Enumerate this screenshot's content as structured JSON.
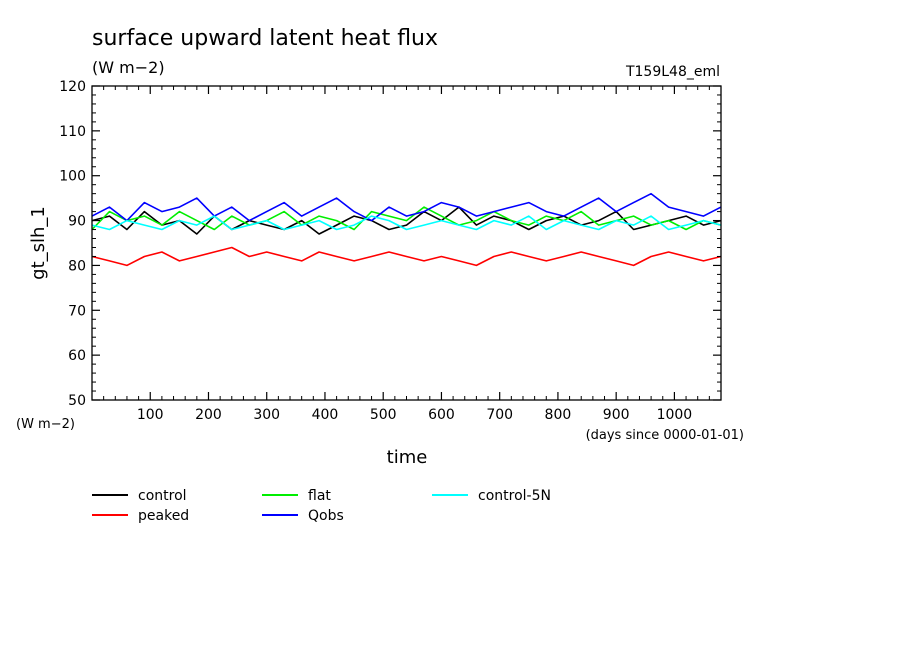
{
  "chart_data": {
    "type": "line",
    "title": "surface upward latent heat flux",
    "subtitle": "(W m−2)",
    "run_label": "T159L48_eml",
    "xlabel": "time",
    "x_units": "(days since 0000-01-01)",
    "ylabel": "gt_slh_1",
    "y_units": "(W m−2)",
    "xlim": [
      0,
      1080
    ],
    "ylim": [
      50,
      120
    ],
    "xticks": [
      "100",
      "200",
      "300",
      "400",
      "500",
      "600",
      "700",
      "800",
      "900",
      "1000"
    ],
    "yticks": [
      "50",
      "60",
      "70",
      "80",
      "90",
      "100",
      "110",
      "120"
    ],
    "legend_position": "bottom",
    "grid": false,
    "series": [
      {
        "name": "control",
        "color": "#000000",
        "x": [
          0,
          30,
          60,
          90,
          120,
          150,
          180,
          210,
          240,
          270,
          300,
          330,
          360,
          390,
          420,
          450,
          480,
          510,
          540,
          570,
          600,
          630,
          660,
          690,
          720,
          750,
          780,
          810,
          840,
          870,
          900,
          930,
          960,
          990,
          1020,
          1050,
          1080
        ],
        "y": [
          90,
          91,
          88,
          92,
          89,
          90,
          87,
          91,
          88,
          90,
          89,
          88,
          90,
          87,
          89,
          91,
          90,
          88,
          89,
          92,
          90,
          93,
          89,
          91,
          90,
          88,
          90,
          91,
          89,
          90,
          92,
          88,
          89,
          90,
          91,
          89,
          90
        ]
      },
      {
        "name": "peaked",
        "color": "#ff0000",
        "x": [
          0,
          30,
          60,
          90,
          120,
          150,
          180,
          210,
          240,
          270,
          300,
          330,
          360,
          390,
          420,
          450,
          480,
          510,
          540,
          570,
          600,
          630,
          660,
          690,
          720,
          750,
          780,
          810,
          840,
          870,
          900,
          930,
          960,
          990,
          1020,
          1050,
          1080
        ],
        "y": [
          82,
          81,
          80,
          82,
          83,
          81,
          82,
          83,
          84,
          82,
          83,
          82,
          81,
          83,
          82,
          81,
          82,
          83,
          82,
          81,
          82,
          81,
          80,
          82,
          83,
          82,
          81,
          82,
          83,
          82,
          81,
          80,
          82,
          83,
          82,
          81,
          82
        ]
      },
      {
        "name": "flat",
        "color": "#00ee00",
        "x": [
          0,
          30,
          60,
          90,
          120,
          150,
          180,
          210,
          240,
          270,
          300,
          330,
          360,
          390,
          420,
          450,
          480,
          510,
          540,
          570,
          600,
          630,
          660,
          690,
          720,
          750,
          780,
          810,
          840,
          870,
          900,
          930,
          960,
          990,
          1020,
          1050,
          1080
        ],
        "y": [
          88,
          92,
          90,
          91,
          89,
          92,
          90,
          88,
          91,
          89,
          90,
          92,
          89,
          91,
          90,
          88,
          92,
          91,
          90,
          93,
          91,
          89,
          90,
          92,
          90,
          89,
          91,
          90,
          92,
          89,
          90,
          91,
          89,
          90,
          88,
          90,
          89
        ]
      },
      {
        "name": "Qobs",
        "color": "#0000ff",
        "x": [
          0,
          30,
          60,
          90,
          120,
          150,
          180,
          210,
          240,
          270,
          300,
          330,
          360,
          390,
          420,
          450,
          480,
          510,
          540,
          570,
          600,
          630,
          660,
          690,
          720,
          750,
          780,
          810,
          840,
          870,
          900,
          930,
          960,
          990,
          1020,
          1050,
          1080
        ],
        "y": [
          91,
          93,
          90,
          94,
          92,
          93,
          95,
          91,
          93,
          90,
          92,
          94,
          91,
          93,
          95,
          92,
          90,
          93,
          91,
          92,
          94,
          93,
          91,
          92,
          93,
          94,
          92,
          91,
          93,
          95,
          92,
          94,
          96,
          93,
          92,
          91,
          93
        ]
      },
      {
        "name": "control-5N",
        "color": "#00ffff",
        "x": [
          0,
          30,
          60,
          90,
          120,
          150,
          180,
          210,
          240,
          270,
          300,
          330,
          360,
          390,
          420,
          450,
          480,
          510,
          540,
          570,
          600,
          630,
          660,
          690,
          720,
          750,
          780,
          810,
          840,
          870,
          900,
          930,
          960,
          990,
          1020,
          1050,
          1080
        ],
        "y": [
          89,
          88,
          90,
          89,
          88,
          90,
          89,
          91,
          88,
          89,
          90,
          88,
          89,
          90,
          88,
          89,
          91,
          90,
          88,
          89,
          90,
          89,
          88,
          90,
          89,
          91,
          88,
          90,
          89,
          88,
          90,
          89,
          91,
          88,
          89,
          90,
          89
        ]
      }
    ]
  }
}
